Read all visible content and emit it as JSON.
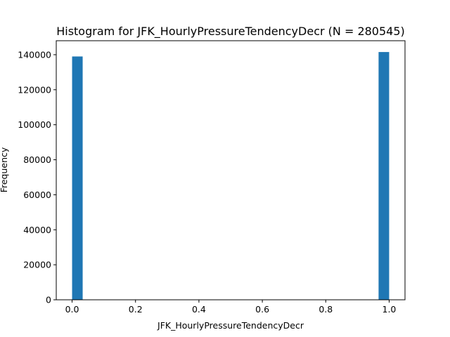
{
  "chart_data": {
    "type": "bar",
    "title": "Histogram for JFK_HourlyPressureTendencyDecr (N = 280545)",
    "xlabel": "JFK_HourlyPressureTendencyDecr",
    "ylabel": "Frequency",
    "xlim": [
      -0.05,
      1.05
    ],
    "ylim": [
      0,
      148000
    ],
    "x_ticks": [
      0.0,
      0.2,
      0.4,
      0.6,
      0.8,
      1.0
    ],
    "x_tick_labels": [
      "0.0",
      "0.2",
      "0.4",
      "0.6",
      "0.8",
      "1.0"
    ],
    "y_ticks": [
      0,
      20000,
      40000,
      60000,
      80000,
      100000,
      120000,
      140000
    ],
    "y_tick_labels": [
      "0",
      "20000",
      "40000",
      "60000",
      "80000",
      "100000",
      "120000",
      "140000"
    ],
    "bin_width": 0.03333,
    "bars": [
      {
        "x_start": 0.0,
        "x_end": 0.03333,
        "value": 139000
      },
      {
        "x_start": 0.96667,
        "x_end": 1.0,
        "value": 141545
      }
    ],
    "bar_color": "#1f77b4",
    "grid": false,
    "legend": "none"
  }
}
